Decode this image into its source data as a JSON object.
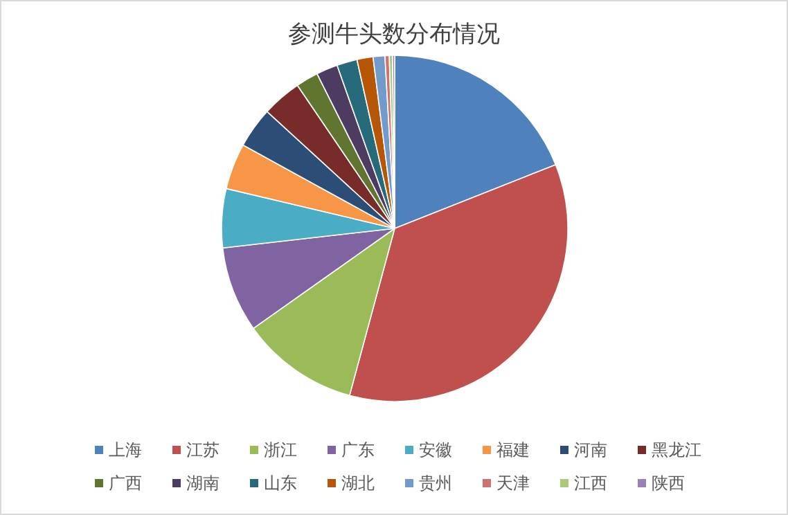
{
  "chart_data": {
    "type": "pie",
    "title": "参测牛头数分布情况",
    "categories": [
      "上海",
      "江苏",
      "浙江",
      "广东",
      "安徽",
      "福建",
      "河南",
      "黑龙江",
      "广西",
      "湖南",
      "山东",
      "湖北",
      "贵州",
      "天津",
      "江西",
      "陕西"
    ],
    "values": [
      19,
      35.2,
      11,
      8,
      5.5,
      4.3,
      3.8,
      3.7,
      2.1,
      2,
      1.9,
      1.5,
      1.1,
      0.4,
      0.3,
      0.2
    ],
    "colors": [
      "#4f81bd",
      "#c0504d",
      "#9bbb59",
      "#8064a2",
      "#4bacc6",
      "#f79646",
      "#2c4d75",
      "#772c2a",
      "#5f7530",
      "#4d3b62",
      "#276a7c",
      "#b65708",
      "#729aca",
      "#cd7371",
      "#afc97a",
      "#9983b5"
    ],
    "legend": "bottom"
  }
}
